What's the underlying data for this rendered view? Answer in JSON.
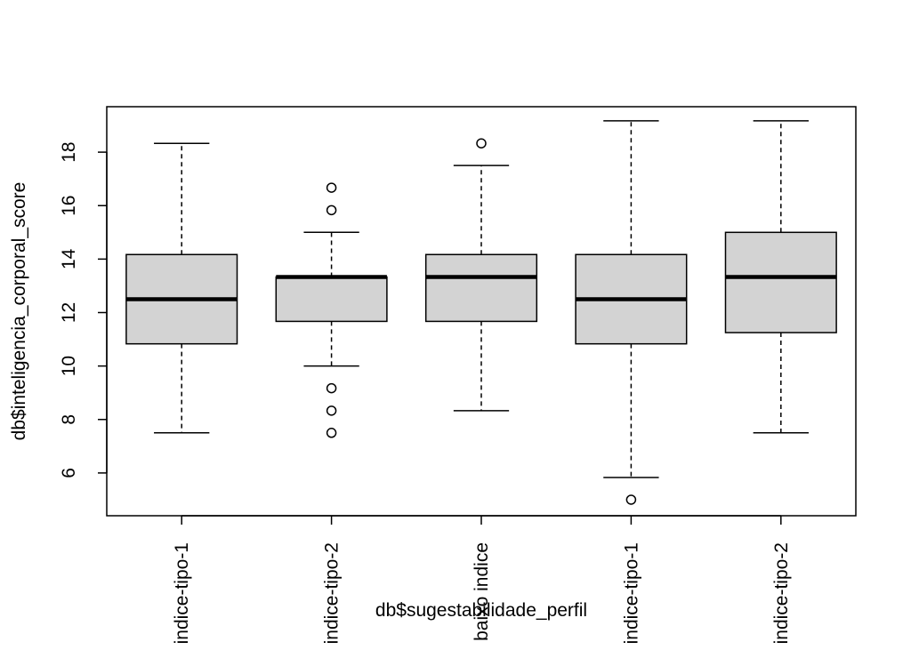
{
  "chart_data": {
    "type": "boxplot",
    "title": "",
    "xlabel": "db$sugestabilidade_perfil",
    "ylabel": "db$inteligencia_corporal_score",
    "categories": [
      "indice-tipo-1",
      "indice-tipo-2",
      "baixo indice",
      "indice-tipo-1",
      "indice-tipo-2"
    ],
    "y_ticks": [
      6,
      8,
      10,
      12,
      14,
      16,
      18
    ],
    "ylim": [
      4.4,
      19.7
    ],
    "grid": false,
    "boxes": [
      {
        "whisker_low": 7.5,
        "q1": 10.83,
        "median": 12.5,
        "q3": 14.17,
        "whisker_high": 18.33,
        "outliers": []
      },
      {
        "whisker_low": 10.0,
        "q1": 11.67,
        "median": 13.33,
        "q3": 13.33,
        "whisker_high": 15.0,
        "outliers": [
          16.67,
          15.83,
          9.17,
          8.33,
          7.5
        ]
      },
      {
        "whisker_low": 8.33,
        "q1": 11.67,
        "median": 13.33,
        "q3": 14.17,
        "whisker_high": 17.5,
        "outliers": [
          18.33
        ]
      },
      {
        "whisker_low": 5.83,
        "q1": 10.83,
        "median": 12.5,
        "q3": 14.17,
        "whisker_high": 19.17,
        "outliers": [
          5.0
        ]
      },
      {
        "whisker_low": 7.5,
        "q1": 11.25,
        "median": 13.33,
        "q3": 15.0,
        "whisker_high": 19.17,
        "outliers": []
      }
    ],
    "colors": {
      "box_fill": "#d3d3d3",
      "stroke": "#000000"
    }
  }
}
